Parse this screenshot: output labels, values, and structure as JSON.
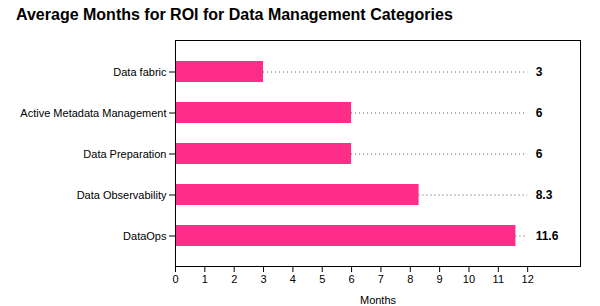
{
  "chart_data": {
    "type": "bar",
    "orientation": "horizontal",
    "title": "Average Months for ROI for Data Management Categories",
    "categories": [
      "Data fabric",
      "Active Metadata Management",
      "Data Preparation",
      "Data Observability",
      "DataOps"
    ],
    "values": [
      3,
      6,
      6,
      8.3,
      11.6
    ],
    "color": "#FF2D8A",
    "xlabel": "Months",
    "xlim": [
      0,
      13.8
    ],
    "xticks": [
      0,
      1,
      2,
      3,
      4,
      5,
      6,
      7,
      8,
      9,
      10,
      11,
      12
    ],
    "grid": false,
    "data_labels": true
  }
}
